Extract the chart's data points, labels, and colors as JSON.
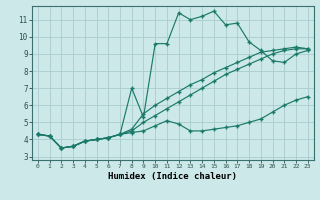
{
  "title": "",
  "xlabel": "Humidex (Indice chaleur)",
  "xlim": [
    -0.5,
    23.5
  ],
  "ylim": [
    2.8,
    11.8
  ],
  "xticks": [
    0,
    1,
    2,
    3,
    4,
    5,
    6,
    7,
    8,
    9,
    10,
    11,
    12,
    13,
    14,
    15,
    16,
    17,
    18,
    19,
    20,
    21,
    22,
    23
  ],
  "yticks": [
    3,
    4,
    5,
    6,
    7,
    8,
    9,
    10,
    11
  ],
  "bg_color": "#cde8e8",
  "grid_color": "#aacccc",
  "line_color": "#1a7a6a",
  "line_wavy_x": [
    0,
    1,
    2,
    3,
    4,
    5,
    6,
    7,
    8,
    9,
    10,
    11,
    12,
    13,
    14,
    15,
    16,
    17,
    18,
    19,
    20,
    21,
    22,
    23
  ],
  "line_wavy_y": [
    4.3,
    4.2,
    3.5,
    3.6,
    3.9,
    4.0,
    4.1,
    4.3,
    7.0,
    5.3,
    9.6,
    9.6,
    11.4,
    11.0,
    11.2,
    11.5,
    10.7,
    10.8,
    9.7,
    9.2,
    8.6,
    8.5,
    9.0,
    9.2
  ],
  "line_mid1_x": [
    0,
    1,
    2,
    3,
    4,
    5,
    6,
    7,
    8,
    9,
    10,
    11,
    12,
    13,
    14,
    15,
    16,
    17,
    18,
    19,
    20,
    21,
    22,
    23
  ],
  "line_mid1_y": [
    4.3,
    4.2,
    3.5,
    3.6,
    3.9,
    4.0,
    4.1,
    4.3,
    4.6,
    5.5,
    6.0,
    6.4,
    6.8,
    7.2,
    7.5,
    7.9,
    8.2,
    8.5,
    8.8,
    9.1,
    9.2,
    9.3,
    9.4,
    9.3
  ],
  "line_mid2_x": [
    0,
    1,
    2,
    3,
    4,
    5,
    6,
    7,
    8,
    9,
    10,
    11,
    12,
    13,
    14,
    15,
    16,
    17,
    18,
    19,
    20,
    21,
    22,
    23
  ],
  "line_mid2_y": [
    4.3,
    4.2,
    3.5,
    3.6,
    3.9,
    4.0,
    4.1,
    4.3,
    4.5,
    5.0,
    5.4,
    5.8,
    6.2,
    6.6,
    7.0,
    7.4,
    7.8,
    8.1,
    8.4,
    8.7,
    9.0,
    9.2,
    9.3,
    9.3
  ],
  "line_low_x": [
    0,
    1,
    2,
    3,
    4,
    5,
    6,
    7,
    8,
    9,
    10,
    11,
    12,
    13,
    14,
    15,
    16,
    17,
    18,
    19,
    20,
    21,
    22,
    23
  ],
  "line_low_y": [
    4.3,
    4.2,
    3.5,
    3.6,
    3.9,
    4.0,
    4.1,
    4.3,
    4.4,
    4.5,
    4.8,
    5.1,
    4.9,
    4.5,
    4.5,
    4.6,
    4.7,
    4.8,
    5.0,
    5.2,
    5.6,
    6.0,
    6.3,
    6.5
  ]
}
